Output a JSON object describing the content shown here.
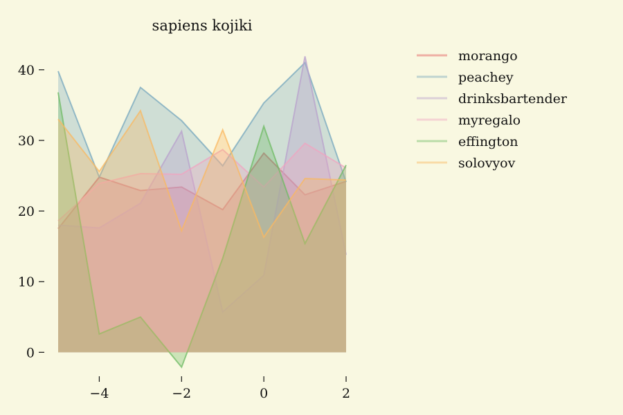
{
  "chart_data": {
    "type": "area",
    "title": "sapiens kojiki",
    "background": "#f9f8e1",
    "x": [
      -5,
      -4,
      -3,
      -2,
      -1,
      0,
      1,
      2
    ],
    "xlim": [
      -5,
      2
    ],
    "ylim": [
      -3,
      44
    ],
    "x_ticks": [
      -4,
      -2,
      0,
      2
    ],
    "y_ticks": [
      0,
      10,
      20,
      30,
      40
    ],
    "x_tick_labels": [
      "−4",
      "−2",
      "0",
      "2"
    ],
    "y_tick_labels": [
      "0",
      "10",
      "20",
      "30",
      "40"
    ],
    "grid": false,
    "legend": "outside-right",
    "series": [
      {
        "name": "morango",
        "color": "#e15759",
        "values": [
          17.5,
          24.8,
          22.9,
          23.4,
          20.2,
          28.2,
          22.3,
          24.2
        ]
      },
      {
        "name": "peachey",
        "color": "#76a7bd",
        "values": [
          39.8,
          24.8,
          37.5,
          32.8,
          26.4,
          35.3,
          41.0,
          24.1
        ]
      },
      {
        "name": "drinksbartender",
        "color": "#b8a0cc",
        "values": [
          18.0,
          17.6,
          21.1,
          31.3,
          5.7,
          10.9,
          41.9,
          13.8
        ]
      },
      {
        "name": "myregalo",
        "color": "#f0a4c0",
        "values": [
          18.6,
          23.9,
          25.3,
          25.2,
          28.7,
          23.4,
          29.6,
          26.1
        ]
      },
      {
        "name": "effington",
        "color": "#6dbb63",
        "values": [
          36.8,
          2.6,
          5.0,
          -2.1,
          13.3,
          32.0,
          15.4,
          26.5
        ]
      },
      {
        "name": "solovyov",
        "color": "#f9b860",
        "values": [
          33.0,
          25.6,
          34.2,
          17.2,
          31.5,
          16.3,
          24.6,
          24.4
        ]
      }
    ]
  }
}
